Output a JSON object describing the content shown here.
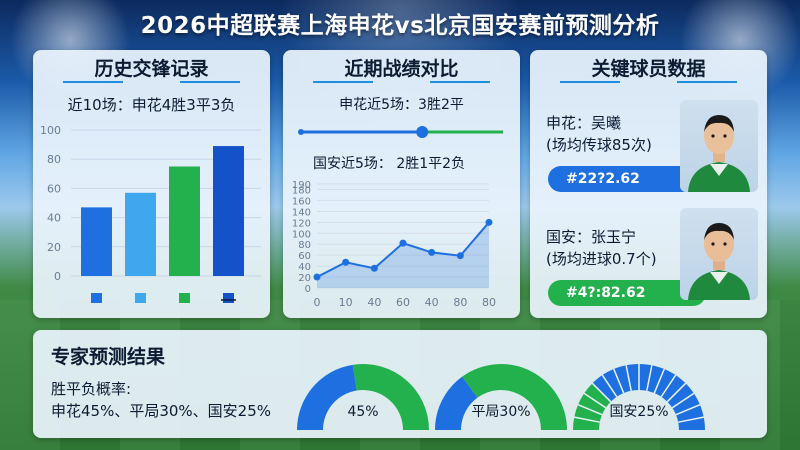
{
  "page": {
    "title": "2026中超联赛上海申花vs北京国安赛前预测分析"
  },
  "colors": {
    "blue": "#1e6fe0",
    "lightblue": "#3ea7ee",
    "green": "#22b14c",
    "navy": "#1352c8"
  },
  "history": {
    "title": "历史交锋记录",
    "summary": "近10场：申花4胜3平3负"
  },
  "form": {
    "title": "近期战绩对比",
    "shenhua": "申花近5场：3胜2平",
    "guoan": "国安近5场：  2胜1平2负",
    "slider_value": 0.6
  },
  "players": {
    "title": "关键球员数据",
    "shenhua_name": "申花：吴曦",
    "shenhua_stat": "(场均传球85次)",
    "shenhua_code": "#22?2.62",
    "guoan_name": "国安：张玉宁",
    "guoan_stat": "(场均进球0.7个)",
    "guoan_code": "#4?:82.62"
  },
  "prediction": {
    "title": "专家预测结果",
    "line1": "胜平负概率:",
    "line2": "申花45%、平局30%、国安25%",
    "gauge1_label": "45%",
    "gauge2_label": "平局30%",
    "gauge3_label": "国安25%",
    "gauge1_value": 0.45,
    "gauge2_value": 0.3,
    "gauge3_value": 0.25
  },
  "chart_data": [
    {
      "type": "bar",
      "ylim": [
        0,
        100
      ],
      "yticks": [
        "0",
        "20",
        "40",
        "60",
        "80",
        "100"
      ],
      "values": [
        47,
        57,
        75,
        89
      ],
      "colors": [
        "#1e6fe0",
        "#3ea7ee",
        "#22b14c",
        "#1352c8"
      ]
    },
    {
      "type": "area",
      "ylim": [
        0,
        190
      ],
      "yticks": [
        "0",
        "20",
        "40",
        "60",
        "80",
        "100",
        "120",
        "140",
        "160",
        "180",
        "190"
      ],
      "xticks": [
        "0",
        "10",
        "40",
        "60",
        "40",
        "80",
        "80"
      ],
      "values": [
        20,
        47,
        36,
        82,
        65,
        59,
        120
      ]
    }
  ]
}
